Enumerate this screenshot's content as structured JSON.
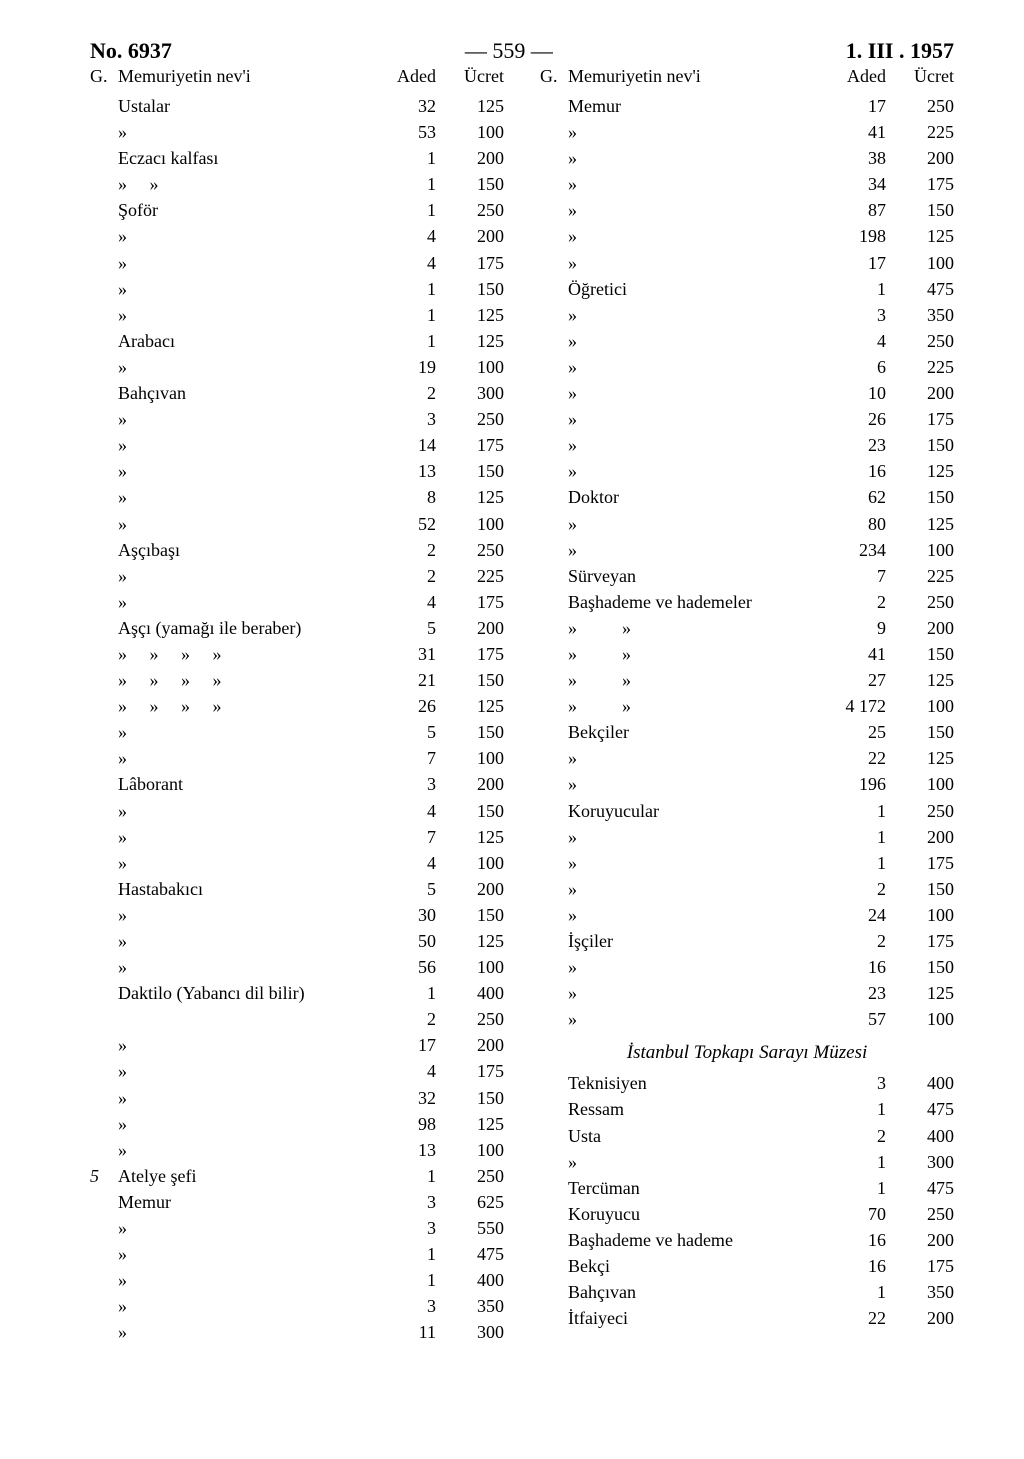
{
  "header": {
    "left": "No. 6937",
    "center": "— 559 —",
    "right": "1. III . 1957"
  },
  "colhdr": {
    "g": "G.",
    "title": "Memuriyetin nev'i",
    "aded": "Aded",
    "ucret": "Ücret"
  },
  "left_rows": [
    {
      "g": "",
      "name": "Ustalar",
      "aded": "32",
      "ucret": "125"
    },
    {
      "g": "",
      "name": "»",
      "aded": "53",
      "ucret": "100"
    },
    {
      "g": "",
      "name": "Eczacı kalfası",
      "aded": "1",
      "ucret": "200"
    },
    {
      "g": "",
      "name": "»     »",
      "aded": "1",
      "ucret": "150"
    },
    {
      "g": "",
      "name": "Şoför",
      "aded": "1",
      "ucret": "250"
    },
    {
      "g": "",
      "name": "»",
      "aded": "4",
      "ucret": "200"
    },
    {
      "g": "",
      "name": "»",
      "aded": "4",
      "ucret": "175"
    },
    {
      "g": "",
      "name": "»",
      "aded": "1",
      "ucret": "150"
    },
    {
      "g": "",
      "name": "»",
      "aded": "1",
      "ucret": "125"
    },
    {
      "g": "",
      "name": "Arabacı",
      "aded": "1",
      "ucret": "125"
    },
    {
      "g": "",
      "name": "»",
      "aded": "19",
      "ucret": "100"
    },
    {
      "g": "",
      "name": "Bahçıvan",
      "aded": "2",
      "ucret": "300"
    },
    {
      "g": "",
      "name": "»",
      "aded": "3",
      "ucret": "250"
    },
    {
      "g": "",
      "name": "»",
      "aded": "14",
      "ucret": "175"
    },
    {
      "g": "",
      "name": "»",
      "aded": "13",
      "ucret": "150"
    },
    {
      "g": "",
      "name": "»",
      "aded": "8",
      "ucret": "125"
    },
    {
      "g": "",
      "name": "»",
      "aded": "52",
      "ucret": "100"
    },
    {
      "g": "",
      "name": "Aşçıbaşı",
      "aded": "2",
      "ucret": "250"
    },
    {
      "g": "",
      "name": "»",
      "aded": "2",
      "ucret": "225"
    },
    {
      "g": "",
      "name": "»",
      "aded": "4",
      "ucret": "175"
    },
    {
      "g": "",
      "name": "Aşçı (yamağı ile beraber)",
      "aded": "5",
      "ucret": "200"
    },
    {
      "g": "",
      "name": "»     »     »     »",
      "aded": "31",
      "ucret": "175"
    },
    {
      "g": "",
      "name": "»     »     »     »",
      "aded": "21",
      "ucret": "150"
    },
    {
      "g": "",
      "name": "»     »     »     »",
      "aded": "26",
      "ucret": "125"
    },
    {
      "g": "",
      "name": "»",
      "aded": "5",
      "ucret": "150"
    },
    {
      "g": "",
      "name": "»",
      "aded": "7",
      "ucret": "100"
    },
    {
      "g": "",
      "name": "Lâborant",
      "aded": "3",
      "ucret": "200"
    },
    {
      "g": "",
      "name": "»",
      "aded": "4",
      "ucret": "150"
    },
    {
      "g": "",
      "name": "»",
      "aded": "7",
      "ucret": "125"
    },
    {
      "g": "",
      "name": "»",
      "aded": "4",
      "ucret": "100"
    },
    {
      "g": "",
      "name": "Hastabakıcı",
      "aded": "5",
      "ucret": "200"
    },
    {
      "g": "",
      "name": "»",
      "aded": "30",
      "ucret": "150"
    },
    {
      "g": "",
      "name": "»",
      "aded": "50",
      "ucret": "125"
    },
    {
      "g": "",
      "name": "»",
      "aded": "56",
      "ucret": "100"
    },
    {
      "g": "",
      "name": "Daktilo (Yabancı dil bilir)",
      "aded": "1",
      "ucret": "400"
    },
    {
      "g": "",
      "name": "",
      "aded": "2",
      "ucret": "250"
    },
    {
      "g": "",
      "name": "»",
      "aded": "17",
      "ucret": "200"
    },
    {
      "g": "",
      "name": "»",
      "aded": "4",
      "ucret": "175"
    },
    {
      "g": "",
      "name": "»",
      "aded": "32",
      "ucret": "150"
    },
    {
      "g": "",
      "name": "»",
      "aded": "98",
      "ucret": "125"
    },
    {
      "g": "",
      "name": "»",
      "aded": "13",
      "ucret": "100"
    },
    {
      "g": "5",
      "name": "Atelye şefi",
      "aded": "1",
      "ucret": "250"
    },
    {
      "g": "",
      "name": "Memur",
      "aded": "3",
      "ucret": "625"
    },
    {
      "g": "",
      "name": "»",
      "aded": "3",
      "ucret": "550"
    },
    {
      "g": "",
      "name": "»",
      "aded": "1",
      "ucret": "475"
    },
    {
      "g": "",
      "name": "»",
      "aded": "1",
      "ucret": "400"
    },
    {
      "g": "",
      "name": "»",
      "aded": "3",
      "ucret": "350"
    },
    {
      "g": "",
      "name": "»",
      "aded": "11",
      "ucret": "300"
    }
  ],
  "right_rows": [
    {
      "g": "",
      "name": "Memur",
      "aded": "17",
      "ucret": "250"
    },
    {
      "g": "",
      "name": "»",
      "aded": "41",
      "ucret": "225"
    },
    {
      "g": "",
      "name": "»",
      "aded": "38",
      "ucret": "200"
    },
    {
      "g": "",
      "name": "»",
      "aded": "34",
      "ucret": "175"
    },
    {
      "g": "",
      "name": "»",
      "aded": "87",
      "ucret": "150"
    },
    {
      "g": "",
      "name": "»",
      "aded": "198",
      "ucret": "125"
    },
    {
      "g": "",
      "name": "»",
      "aded": "17",
      "ucret": "100"
    },
    {
      "g": "",
      "name": "Öğretici",
      "aded": "1",
      "ucret": "475"
    },
    {
      "g": "",
      "name": "»",
      "aded": "3",
      "ucret": "350"
    },
    {
      "g": "",
      "name": "»",
      "aded": "4",
      "ucret": "250"
    },
    {
      "g": "",
      "name": "»",
      "aded": "6",
      "ucret": "225"
    },
    {
      "g": "",
      "name": "»",
      "aded": "10",
      "ucret": "200"
    },
    {
      "g": "",
      "name": "»",
      "aded": "26",
      "ucret": "175"
    },
    {
      "g": "",
      "name": "»",
      "aded": "23",
      "ucret": "150"
    },
    {
      "g": "",
      "name": "»",
      "aded": "16",
      "ucret": "125"
    },
    {
      "g": "",
      "name": "Doktor",
      "aded": "62",
      "ucret": "150"
    },
    {
      "g": "",
      "name": "»",
      "aded": "80",
      "ucret": "125"
    },
    {
      "g": "",
      "name": "»",
      "aded": "234",
      "ucret": "100"
    },
    {
      "g": "",
      "name": "Sürveyan",
      "aded": "7",
      "ucret": "225"
    },
    {
      "g": "",
      "name": "Başhademe ve hademeler",
      "aded": "2",
      "ucret": "250"
    },
    {
      "g": "",
      "name": "»          »",
      "aded": "9",
      "ucret": "200"
    },
    {
      "g": "",
      "name": "»          »",
      "aded": "41",
      "ucret": "150"
    },
    {
      "g": "",
      "name": "»          »",
      "aded": "27",
      "ucret": "125"
    },
    {
      "g": "",
      "name": "»          »",
      "aded": "4 172",
      "ucret": "100"
    },
    {
      "g": "",
      "name": "Bekçiler",
      "aded": "25",
      "ucret": "150"
    },
    {
      "g": "",
      "name": "»",
      "aded": "22",
      "ucret": "125"
    },
    {
      "g": "",
      "name": "»",
      "aded": "196",
      "ucret": "100"
    },
    {
      "g": "",
      "name": "Koruyucular",
      "aded": "1",
      "ucret": "250"
    },
    {
      "g": "",
      "name": "»",
      "aded": "1",
      "ucret": "200"
    },
    {
      "g": "",
      "name": "»",
      "aded": "1",
      "ucret": "175"
    },
    {
      "g": "",
      "name": "»",
      "aded": "2",
      "ucret": "150"
    },
    {
      "g": "",
      "name": "»",
      "aded": "24",
      "ucret": "100"
    },
    {
      "g": "",
      "name": "İşçiler",
      "aded": "2",
      "ucret": "175"
    },
    {
      "g": "",
      "name": "»",
      "aded": "16",
      "ucret": "150"
    },
    {
      "g": "",
      "name": "»",
      "aded": "23",
      "ucret": "125"
    },
    {
      "g": "",
      "name": "»",
      "aded": "57",
      "ucret": "100"
    }
  ],
  "right_section_title": "İstanbul Topkapı Sarayı Müzesi",
  "right_rows_2": [
    {
      "g": "",
      "name": "Teknisiyen",
      "aded": "3",
      "ucret": "400"
    },
    {
      "g": "",
      "name": "Ressam",
      "aded": "1",
      "ucret": "475"
    },
    {
      "g": "",
      "name": "Usta",
      "aded": "2",
      "ucret": "400"
    },
    {
      "g": "",
      "name": "»",
      "aded": "1",
      "ucret": "300"
    },
    {
      "g": "",
      "name": "Tercüman",
      "aded": "1",
      "ucret": "475"
    },
    {
      "g": "",
      "name": "Koruyucu",
      "aded": "70",
      "ucret": "250"
    },
    {
      "g": "",
      "name": "Başhademe ve hademe",
      "aded": "16",
      "ucret": "200"
    },
    {
      "g": "",
      "name": "Bekçi",
      "aded": "16",
      "ucret": "175"
    },
    {
      "g": "",
      "name": "Bahçıvan",
      "aded": "1",
      "ucret": "350"
    },
    {
      "g": "",
      "name": "İtfaiyeci",
      "aded": "22",
      "ucret": "200"
    }
  ]
}
